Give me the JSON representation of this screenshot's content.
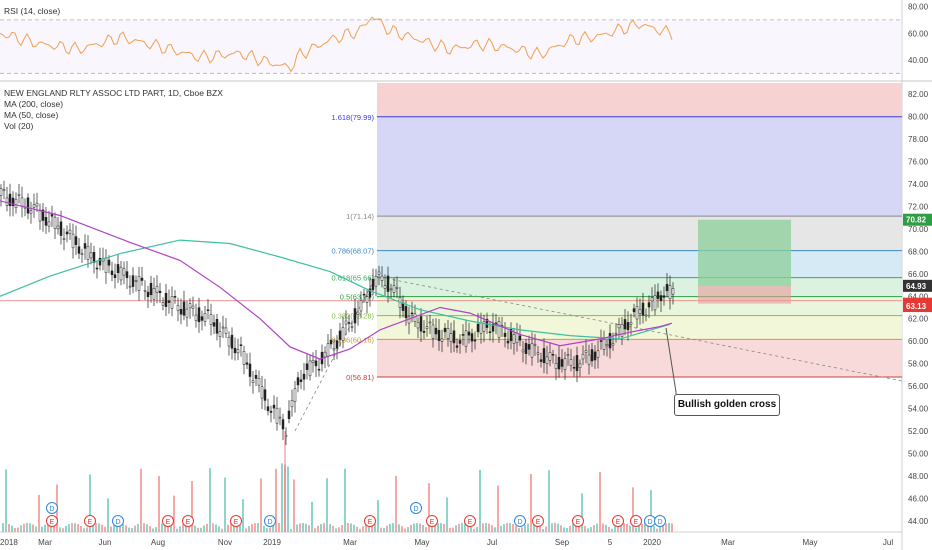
{
  "rsi_label": "RSI (14, close)",
  "legend": {
    "title": "NEW ENGLAND RLTY ASSOC LTD PART, 1D, Cboe BZX",
    "ma200": "MA (200, close)",
    "ma50": "MA (50, close)",
    "vol": "Vol (20)"
  },
  "annotation": "Bullish golden cross",
  "colors": {
    "up": "#26a69a",
    "down": "#ef5350",
    "candle": "#222222",
    "ma200": "#3fbfa0",
    "ma50": "#b040c8",
    "rsi": "#f0a050",
    "tag_green": "#2e9e44",
    "tag_red": "#e53935"
  },
  "chart_data": {
    "type": "candlestick",
    "price_axis": {
      "min": 43,
      "max": 83,
      "ticks": [
        "82.00",
        "80.00",
        "78.00",
        "76.00",
        "74.00",
        "72.00",
        "70.00",
        "68.00",
        "66.00",
        "64.00",
        "62.00",
        "60.00",
        "58.00",
        "56.00",
        "54.00",
        "52.00",
        "50.00",
        "48.00",
        "46.00",
        "44.00"
      ]
    },
    "rsi_axis": {
      "ticks": [
        "80.00",
        "60.00",
        "40.00"
      ],
      "levels": [
        70,
        30
      ]
    },
    "time_axis": [
      "2018",
      "Mar",
      "Jun",
      "Aug",
      "Nov",
      "2019",
      "Mar",
      "May",
      "Jul",
      "Sep",
      "5",
      "2020",
      "Mar",
      "May",
      "Jul"
    ],
    "fib_levels": [
      {
        "label": "1.618(79.99)",
        "value": 79.99
      },
      {
        "label": "1(71.14)",
        "value": 71.14
      },
      {
        "label": "0.786(68.07)",
        "value": 68.07
      },
      {
        "label": "0.618(65.66)",
        "value": 65.66
      },
      {
        "label": "0.5(63.97)",
        "value": 63.97
      },
      {
        "label": "0.382(62.28)",
        "value": 62.28
      },
      {
        "label": "0.236(60.16)",
        "value": 60.16
      },
      {
        "label": "0(56.81)",
        "value": 56.81
      }
    ],
    "price_tags": [
      {
        "label": "70.82",
        "value": 70.82,
        "color": "green"
      },
      {
        "label": "64.93",
        "value": 64.93,
        "color": "dark"
      },
      {
        "label": "63.34",
        "value": 63.34,
        "color": "red"
      },
      {
        "label": "63.13",
        "value": 63.13,
        "color": "red"
      }
    ],
    "position_tool": {
      "entry": 64.9,
      "target": 70.82,
      "stop": 63.34
    },
    "events": [
      "D",
      "E",
      "E",
      "D",
      "E",
      "E",
      "D",
      "E",
      "D",
      "D",
      "E",
      "E",
      "E",
      "E",
      "D",
      "E",
      "E",
      "E",
      "D"
    ],
    "price_path": [
      [
        0,
        73
      ],
      [
        30,
        72
      ],
      [
        60,
        70
      ],
      [
        90,
        67.5
      ],
      [
        120,
        66
      ],
      [
        150,
        64.5
      ],
      [
        180,
        63
      ],
      [
        210,
        62
      ],
      [
        240,
        59
      ],
      [
        270,
        54
      ],
      [
        285,
        52.3
      ],
      [
        300,
        57
      ],
      [
        320,
        58.3
      ],
      [
        340,
        60.5
      ],
      [
        360,
        63
      ],
      [
        375,
        65.6
      ],
      [
        390,
        65
      ],
      [
        410,
        62
      ],
      [
        430,
        61
      ],
      [
        460,
        60
      ],
      [
        490,
        61.5
      ],
      [
        520,
        59.8
      ],
      [
        550,
        58.3
      ],
      [
        575,
        58
      ],
      [
        595,
        59
      ],
      [
        615,
        60.5
      ],
      [
        630,
        62
      ],
      [
        645,
        63
      ],
      [
        655,
        63.5
      ],
      [
        662,
        64.5
      ],
      [
        672,
        64.2
      ]
    ],
    "ma200_path": [
      [
        0,
        64
      ],
      [
        50,
        65.8
      ],
      [
        120,
        67.8
      ],
      [
        180,
        69
      ],
      [
        230,
        68.7
      ],
      [
        280,
        67.5
      ],
      [
        330,
        66.2
      ],
      [
        370,
        64.5
      ],
      [
        420,
        62.8
      ],
      [
        470,
        61.8
      ],
      [
        520,
        61
      ],
      [
        570,
        60.5
      ],
      [
        620,
        60.2
      ],
      [
        670,
        61.5
      ]
    ],
    "ma50_path": [
      [
        0,
        72.5
      ],
      [
        60,
        71.2
      ],
      [
        130,
        68.8
      ],
      [
        180,
        67.2
      ],
      [
        220,
        64.8
      ],
      [
        260,
        62
      ],
      [
        290,
        59.5
      ],
      [
        320,
        58.4
      ],
      [
        350,
        59.3
      ],
      [
        380,
        61
      ],
      [
        410,
        62
      ],
      [
        440,
        63
      ],
      [
        470,
        62.5
      ],
      [
        520,
        60.6
      ],
      [
        560,
        59.6
      ],
      [
        600,
        60.2
      ],
      [
        630,
        60.8
      ],
      [
        660,
        61.3
      ],
      [
        672,
        61.6
      ]
    ],
    "rsi_path": [
      [
        0,
        60
      ],
      [
        40,
        52
      ],
      [
        80,
        48
      ],
      [
        120,
        57
      ],
      [
        160,
        50
      ],
      [
        200,
        42
      ],
      [
        240,
        45
      ],
      [
        270,
        38
      ],
      [
        290,
        34
      ],
      [
        300,
        44
      ],
      [
        330,
        55
      ],
      [
        360,
        62
      ],
      [
        372,
        73
      ],
      [
        390,
        62
      ],
      [
        420,
        55
      ],
      [
        450,
        48
      ],
      [
        480,
        52
      ],
      [
        510,
        49
      ],
      [
        540,
        44
      ],
      [
        570,
        55
      ],
      [
        600,
        58
      ],
      [
        620,
        63
      ],
      [
        640,
        67
      ],
      [
        660,
        62
      ],
      [
        672,
        60
      ]
    ],
    "trendline": [
      [
        375,
        65.8
      ],
      [
        905,
        56.4
      ]
    ],
    "swing_line": [
      [
        295,
        52
      ],
      [
        375,
        65.6
      ]
    ]
  }
}
